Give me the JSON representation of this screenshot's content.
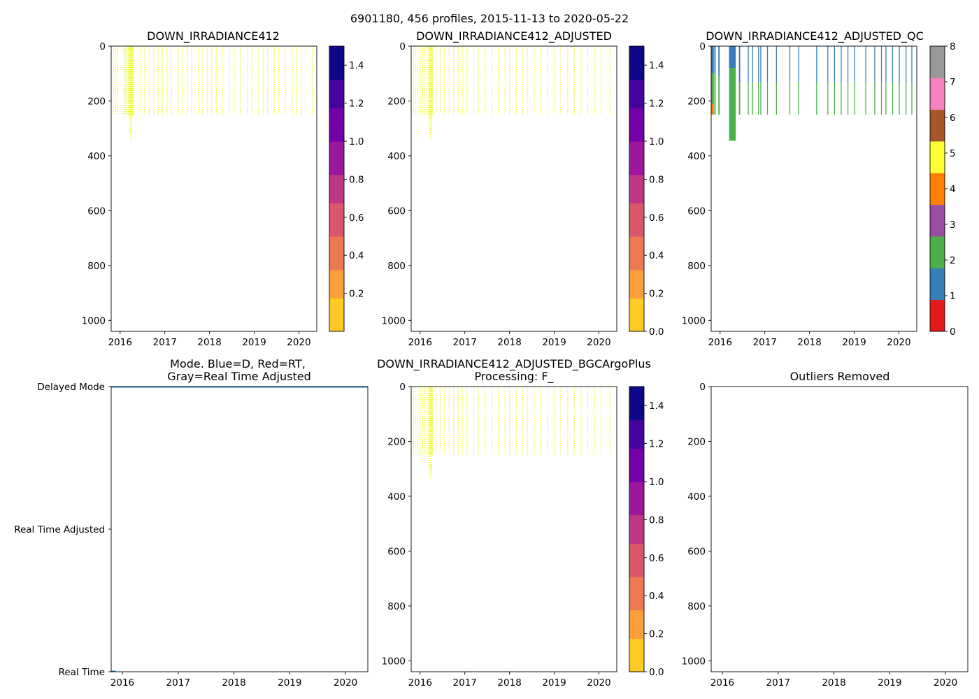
{
  "figure_title": "6901180, 456 profiles, 2015-11-13 to 2020-05-22",
  "colors": {
    "plasma": [
      "#0d0887",
      "#46039f",
      "#7201a8",
      "#9c179e",
      "#bd3786",
      "#d8576b",
      "#ed7953",
      "#fb9f3a",
      "#fdca26",
      "#f0f921"
    ],
    "qc": [
      "#e41a1c",
      "#377eb8",
      "#4daf4a",
      "#984ea3",
      "#ff7f00",
      "#ffff33",
      "#a65628",
      "#f781bf",
      "#999999"
    ],
    "profile_fill": "#f0f921",
    "mode_line": "#1f77b4"
  },
  "chart_data": [
    {
      "id": "raw",
      "type": "heatmap",
      "title": "DOWN_IRRADIANCE412",
      "title2": "",
      "xlim": [
        2015.8,
        2020.4
      ],
      "ylim": [
        1040,
        0
      ],
      "xticks": [
        2016,
        2017,
        2018,
        2019,
        2020
      ],
      "yticks": [
        0,
        200,
        400,
        600,
        800,
        1000
      ],
      "colorbar": {
        "type": "continuous",
        "range": [
          0.0,
          1.5
        ],
        "ticks": [
          0.2,
          0.4,
          0.6,
          0.8,
          1.0,
          1.2,
          1.4
        ]
      },
      "profiles": [
        [
          2015.85,
          250
        ],
        [
          2015.9,
          250
        ],
        [
          2015.95,
          250
        ],
        [
          2016.08,
          250
        ],
        [
          2016.12,
          250
        ],
        [
          2016.15,
          250
        ],
        [
          2016.18,
          250
        ],
        [
          2016.2,
          270
        ],
        [
          2016.22,
          320
        ],
        [
          2016.24,
          340
        ],
        [
          2016.26,
          320
        ],
        [
          2016.28,
          260
        ],
        [
          2016.3,
          250
        ],
        [
          2016.45,
          240
        ],
        [
          2016.55,
          250
        ],
        [
          2016.65,
          250
        ],
        [
          2016.75,
          250
        ],
        [
          2016.85,
          250
        ],
        [
          2016.95,
          250
        ],
        [
          2017.05,
          250
        ],
        [
          2017.15,
          250
        ],
        [
          2017.3,
          250
        ],
        [
          2017.4,
          250
        ],
        [
          2017.5,
          250
        ],
        [
          2017.6,
          250
        ],
        [
          2017.75,
          250
        ],
        [
          2017.85,
          250
        ],
        [
          2017.95,
          250
        ],
        [
          2018.05,
          250
        ],
        [
          2018.15,
          250
        ],
        [
          2018.3,
          250
        ],
        [
          2018.45,
          250
        ],
        [
          2018.55,
          250
        ],
        [
          2018.7,
          250
        ],
        [
          2018.85,
          250
        ],
        [
          2018.95,
          250
        ],
        [
          2019.1,
          250
        ],
        [
          2019.2,
          250
        ],
        [
          2019.3,
          250
        ],
        [
          2019.45,
          250
        ],
        [
          2019.55,
          250
        ],
        [
          2019.7,
          250
        ],
        [
          2019.85,
          250
        ],
        [
          2019.95,
          250
        ],
        [
          2020.05,
          250
        ],
        [
          2020.15,
          250
        ],
        [
          2020.3,
          250
        ]
      ]
    },
    {
      "id": "adjusted",
      "type": "heatmap",
      "title": "DOWN_IRRADIANCE412_ADJUSTED",
      "title2": "",
      "xlim": [
        2015.8,
        2020.4
      ],
      "ylim": [
        1040,
        0
      ],
      "xticks": [
        2016,
        2017,
        2018,
        2019,
        2020
      ],
      "yticks": [
        0,
        200,
        400,
        600,
        800,
        1000
      ],
      "colorbar": {
        "type": "continuous",
        "range": [
          0.0,
          1.5
        ],
        "ticks": [
          0.0,
          0.2,
          0.4,
          0.6,
          0.8,
          1.0,
          1.2,
          1.4
        ]
      },
      "profiles": [
        [
          2015.85,
          250
        ],
        [
          2015.9,
          250
        ],
        [
          2015.95,
          250
        ],
        [
          2016.0,
          250
        ],
        [
          2016.05,
          250
        ],
        [
          2016.1,
          250
        ],
        [
          2016.15,
          250
        ],
        [
          2016.2,
          300
        ],
        [
          2016.22,
          330
        ],
        [
          2016.24,
          340
        ],
        [
          2016.26,
          320
        ],
        [
          2016.3,
          250
        ],
        [
          2016.35,
          240
        ],
        [
          2016.45,
          240
        ],
        [
          2016.55,
          250
        ],
        [
          2016.65,
          250
        ],
        [
          2016.75,
          250
        ],
        [
          2016.85,
          250
        ],
        [
          2016.95,
          250
        ],
        [
          2017.05,
          250
        ],
        [
          2017.2,
          250
        ],
        [
          2017.3,
          250
        ],
        [
          2017.45,
          250
        ],
        [
          2017.6,
          250
        ],
        [
          2017.75,
          250
        ],
        [
          2017.9,
          250
        ],
        [
          2018.0,
          250
        ],
        [
          2018.15,
          250
        ],
        [
          2018.3,
          250
        ],
        [
          2018.4,
          250
        ],
        [
          2018.55,
          250
        ],
        [
          2018.7,
          250
        ],
        [
          2018.85,
          250
        ],
        [
          2019.0,
          250
        ],
        [
          2019.15,
          250
        ],
        [
          2019.3,
          250
        ],
        [
          2019.45,
          250
        ],
        [
          2019.6,
          250
        ],
        [
          2019.75,
          250
        ],
        [
          2019.9,
          250
        ],
        [
          2020.05,
          250
        ],
        [
          2020.25,
          250
        ]
      ]
    },
    {
      "id": "qc",
      "type": "heatmap",
      "title": "DOWN_IRRADIANCE412_ADJUSTED_QC",
      "title2": "",
      "xlim": [
        2015.8,
        2020.4
      ],
      "ylim": [
        1040,
        0
      ],
      "xticks": [
        2016,
        2017,
        2018,
        2019,
        2020
      ],
      "yticks": [
        0,
        200,
        400,
        600,
        800,
        1000
      ],
      "colorbar": {
        "type": "discrete",
        "range": [
          0,
          8
        ],
        "ticks": [
          0,
          1,
          2,
          3,
          4,
          5,
          6,
          7,
          8
        ]
      },
      "qc_columns": [
        {
          "x0": 2015.8,
          "x1": 2015.86,
          "segs": [
            [
              0,
              100,
              1
            ],
            [
              100,
              210,
              2
            ],
            [
              210,
              250,
              4
            ]
          ]
        },
        {
          "x0": 2015.87,
          "x1": 2015.9,
          "segs": [
            [
              0,
              100,
              1
            ],
            [
              100,
              250,
              2
            ]
          ]
        },
        {
          "x0": 2015.96,
          "x1": 2015.99,
          "segs": [
            [
              0,
              110,
              1
            ],
            [
              110,
              250,
              2
            ]
          ]
        },
        {
          "x0": 2016.2,
          "x1": 2016.35,
          "segs": [
            [
              0,
              80,
              1
            ],
            [
              80,
              345,
              2
            ]
          ]
        },
        {
          "x0": 2016.42,
          "x1": 2016.45,
          "segs": [
            [
              0,
              130,
              1
            ],
            [
              130,
              250,
              2
            ]
          ]
        },
        {
          "x0": 2016.62,
          "x1": 2016.64,
          "segs": [
            [
              0,
              130,
              1
            ],
            [
              130,
              250,
              2
            ]
          ]
        },
        {
          "x0": 2016.72,
          "x1": 2016.74,
          "segs": [
            [
              0,
              130,
              1
            ],
            [
              130,
              250,
              2
            ]
          ]
        },
        {
          "x0": 2016.85,
          "x1": 2016.87,
          "segs": [
            [
              0,
              130,
              1
            ],
            [
              130,
              250,
              2
            ]
          ]
        },
        {
          "x0": 2016.9,
          "x1": 2016.92,
          "segs": [
            [
              0,
              130,
              1
            ],
            [
              130,
              250,
              2
            ]
          ]
        },
        {
          "x0": 2017.05,
          "x1": 2017.07,
          "segs": [
            [
              0,
              130,
              1
            ],
            [
              130,
              250,
              2
            ]
          ]
        },
        {
          "x0": 2017.25,
          "x1": 2017.27,
          "segs": [
            [
              0,
              130,
              1
            ],
            [
              130,
              250,
              2
            ]
          ]
        },
        {
          "x0": 2017.55,
          "x1": 2017.57,
          "segs": [
            [
              0,
              130,
              1
            ],
            [
              130,
              250,
              2
            ]
          ]
        },
        {
          "x0": 2017.75,
          "x1": 2017.77,
          "segs": [
            [
              0,
              130,
              1
            ],
            [
              130,
              250,
              2
            ]
          ]
        },
        {
          "x0": 2018.15,
          "x1": 2018.17,
          "segs": [
            [
              0,
              130,
              1
            ],
            [
              130,
              250,
              2
            ]
          ]
        },
        {
          "x0": 2018.4,
          "x1": 2018.42,
          "segs": [
            [
              0,
              130,
              1
            ],
            [
              130,
              250,
              2
            ]
          ]
        },
        {
          "x0": 2018.55,
          "x1": 2018.57,
          "segs": [
            [
              0,
              130,
              1
            ],
            [
              130,
              250,
              2
            ]
          ]
        },
        {
          "x0": 2018.7,
          "x1": 2018.72,
          "segs": [
            [
              0,
              130,
              1
            ],
            [
              130,
              250,
              2
            ]
          ]
        },
        {
          "x0": 2018.85,
          "x1": 2018.87,
          "segs": [
            [
              0,
              130,
              1
            ],
            [
              130,
              250,
              2
            ]
          ]
        },
        {
          "x0": 2019.0,
          "x1": 2019.02,
          "segs": [
            [
              0,
              130,
              1
            ],
            [
              130,
              250,
              2
            ]
          ]
        },
        {
          "x0": 2019.25,
          "x1": 2019.27,
          "segs": [
            [
              0,
              130,
              1
            ],
            [
              130,
              250,
              2
            ]
          ]
        },
        {
          "x0": 2019.45,
          "x1": 2019.47,
          "segs": [
            [
              0,
              130,
              1
            ],
            [
              130,
              250,
              2
            ]
          ]
        },
        {
          "x0": 2019.6,
          "x1": 2019.62,
          "segs": [
            [
              0,
              130,
              1
            ],
            [
              130,
              250,
              2
            ]
          ]
        },
        {
          "x0": 2019.7,
          "x1": 2019.72,
          "segs": [
            [
              0,
              130,
              1
            ],
            [
              130,
              250,
              2
            ]
          ]
        },
        {
          "x0": 2019.85,
          "x1": 2019.87,
          "segs": [
            [
              0,
              130,
              1
            ],
            [
              130,
              250,
              2
            ]
          ]
        },
        {
          "x0": 2020.0,
          "x1": 2020.02,
          "segs": [
            [
              0,
              130,
              1
            ],
            [
              130,
              250,
              2
            ]
          ]
        },
        {
          "x0": 2020.15,
          "x1": 2020.17,
          "segs": [
            [
              0,
              130,
              1
            ],
            [
              130,
              250,
              2
            ]
          ]
        },
        {
          "x0": 2020.28,
          "x1": 2020.3,
          "segs": [
            [
              0,
              130,
              1
            ],
            [
              130,
              250,
              2
            ]
          ]
        }
      ]
    },
    {
      "id": "mode",
      "type": "line",
      "title": "Mode. Blue=D, Red=RT,",
      "title2": "Gray=Real Time Adjusted",
      "xlim": [
        2015.8,
        2020.4
      ],
      "ylim": [
        0,
        2
      ],
      "xticks": [
        2016,
        2017,
        2018,
        2019,
        2020
      ],
      "ytick_labels": [
        {
          "value": 2,
          "label": "Delayed Mode"
        },
        {
          "value": 1,
          "label": "Real Time Adjusted"
        },
        {
          "value": 0,
          "label": "Real Time"
        }
      ],
      "series": [
        {
          "name": "Delayed Mode",
          "value": 2,
          "x": [
            2015.8,
            2020.4
          ]
        },
        {
          "name": "Real Time",
          "value": 0,
          "x": [
            2015.8,
            2015.88
          ]
        }
      ]
    },
    {
      "id": "bgc",
      "type": "heatmap",
      "title": "DOWN_IRRADIANCE412_ADJUSTED_BGCArgoPlus",
      "title2": "Processing: F_",
      "xlim": [
        2015.8,
        2020.4
      ],
      "ylim": [
        1040,
        0
      ],
      "xticks": [
        2016,
        2017,
        2018,
        2019,
        2020
      ],
      "yticks": [
        0,
        200,
        400,
        600,
        800,
        1000
      ],
      "colorbar": {
        "type": "continuous",
        "range": [
          0.0,
          1.5
        ],
        "ticks": [
          0.0,
          0.2,
          0.4,
          0.6,
          0.8,
          1.0,
          1.2,
          1.4
        ]
      },
      "profiles": [
        [
          2015.85,
          250
        ],
        [
          2015.9,
          250
        ],
        [
          2015.95,
          250
        ],
        [
          2016.0,
          250
        ],
        [
          2016.05,
          250
        ],
        [
          2016.1,
          250
        ],
        [
          2016.15,
          250
        ],
        [
          2016.2,
          300
        ],
        [
          2016.22,
          330
        ],
        [
          2016.24,
          340
        ],
        [
          2016.26,
          320
        ],
        [
          2016.3,
          250
        ],
        [
          2016.35,
          240
        ],
        [
          2016.45,
          240
        ],
        [
          2016.55,
          250
        ],
        [
          2016.65,
          250
        ],
        [
          2016.75,
          250
        ],
        [
          2016.85,
          250
        ],
        [
          2016.95,
          250
        ],
        [
          2017.05,
          250
        ],
        [
          2017.2,
          250
        ],
        [
          2017.3,
          250
        ],
        [
          2017.45,
          250
        ],
        [
          2017.6,
          250
        ],
        [
          2017.75,
          250
        ],
        [
          2017.9,
          250
        ],
        [
          2018.0,
          250
        ],
        [
          2018.15,
          250
        ],
        [
          2018.3,
          250
        ],
        [
          2018.4,
          250
        ],
        [
          2018.55,
          250
        ],
        [
          2018.7,
          250
        ],
        [
          2018.85,
          250
        ],
        [
          2019.0,
          250
        ],
        [
          2019.15,
          250
        ],
        [
          2019.3,
          250
        ],
        [
          2019.45,
          250
        ],
        [
          2019.6,
          250
        ],
        [
          2019.75,
          250
        ],
        [
          2019.9,
          250
        ],
        [
          2020.05,
          250
        ],
        [
          2020.25,
          250
        ]
      ]
    },
    {
      "id": "outliers",
      "type": "scatter",
      "title": "Outliers Removed",
      "title2": "",
      "xlim": [
        2015.8,
        2020.4
      ],
      "ylim": [
        1040,
        0
      ],
      "xticks": [
        2016,
        2017,
        2018,
        2019,
        2020
      ],
      "yticks": [
        0,
        200,
        400,
        600,
        800,
        1000
      ],
      "points": []
    }
  ]
}
